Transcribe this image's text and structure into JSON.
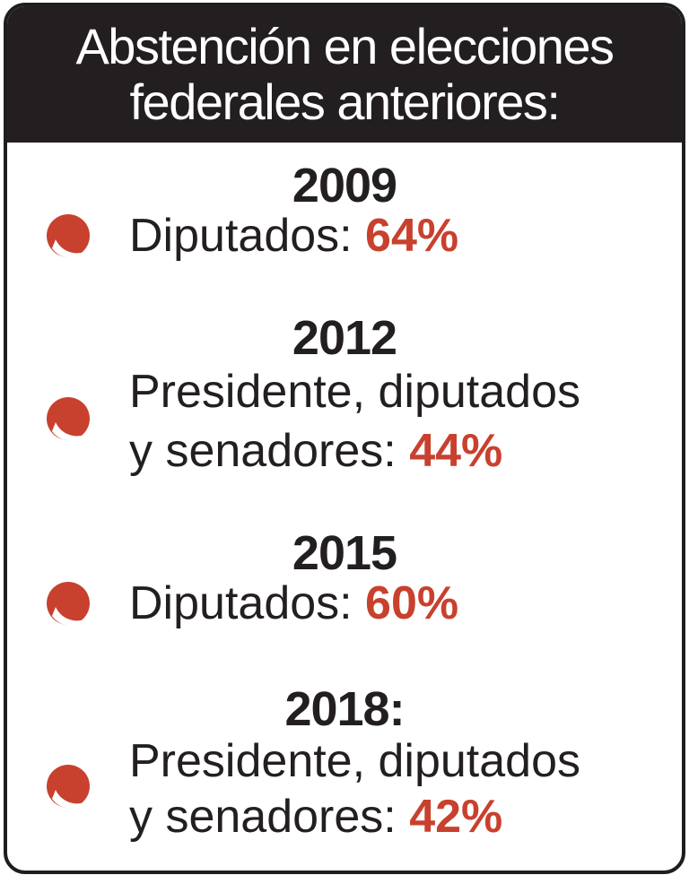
{
  "header": {
    "line1": "Abstención en elecciones",
    "line2": "federales anteriores:"
  },
  "colors": {
    "header_bg": "#231f20",
    "accent": "#c8412e",
    "text": "#231f20"
  },
  "entries": [
    {
      "year": "2009",
      "line1": "Diputados: ",
      "line2": "",
      "percent": "64%"
    },
    {
      "year": "2012",
      "line1": "Presidente, diputados",
      "line2": "y senadores: ",
      "percent": "44%"
    },
    {
      "year": "2015",
      "line1": "Diputados: ",
      "line2": "",
      "percent": "60%"
    },
    {
      "year": "2018:",
      "line1": "Presidente, diputados",
      "line2": "y senadores: ",
      "percent": "42%"
    }
  ],
  "bullet_icon": "red-circle-bullet-icon"
}
